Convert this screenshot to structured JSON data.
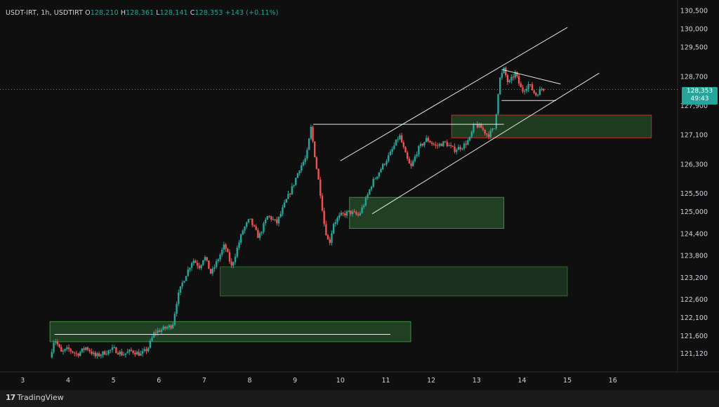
{
  "legend": {
    "symbol": "USDT-IRT, 1h, USDTIRT",
    "o_label": "O",
    "o_value": "128,210",
    "h_label": "H",
    "h_value": "128,361",
    "l_label": "L",
    "l_value": "128,141",
    "c_label": "C",
    "c_value": "128,353",
    "change": "+143 (+0.11%)"
  },
  "price_tag": {
    "price": "128,353",
    "countdown": "49:43"
  },
  "branding": {
    "logo_mark": "17",
    "name": "TradingView"
  },
  "colors": {
    "up": "#26a69a",
    "down": "#ef5350",
    "zone_fill": "#4caf50",
    "zone_border": "#4caf50",
    "red_zone_border": "#d32f2f",
    "line": "#ffffff",
    "background": "#0f0f0f"
  },
  "chart_data": {
    "type": "candlestick",
    "title": "USDT-IRT, 1h, USDTIRT",
    "xlabel": "",
    "ylabel": "",
    "x_ticks": [
      "3",
      "4",
      "5",
      "6",
      "7",
      "8",
      "9",
      "10",
      "11",
      "12",
      "13",
      "14",
      "15",
      "16"
    ],
    "y_ticks": [
      "130,500",
      "130,000",
      "129,500",
      "128,700",
      "127,900",
      "127,100",
      "126,300",
      "125,500",
      "125,000",
      "124,400",
      "123,800",
      "123,200",
      "122,600",
      "122,100",
      "121,600",
      "121,120"
    ],
    "x_range": [
      2.5,
      17.35
    ],
    "y_range": [
      120700,
      130800
    ],
    "current_price": 128353,
    "price_path": [
      [
        3.6,
        121020
      ],
      [
        3.7,
        121550
      ],
      [
        3.85,
        121150
      ],
      [
        4.0,
        121250
      ],
      [
        4.2,
        121100
      ],
      [
        4.4,
        121300
      ],
      [
        4.6,
        121050
      ],
      [
        4.8,
        121150
      ],
      [
        5.0,
        121250
      ],
      [
        5.2,
        121100
      ],
      [
        5.4,
        121200
      ],
      [
        5.6,
        121100
      ],
      [
        5.75,
        121250
      ],
      [
        5.9,
        121700
      ],
      [
        6.1,
        121800
      ],
      [
        6.3,
        121900
      ],
      [
        6.4,
        122600
      ],
      [
        6.5,
        123000
      ],
      [
        6.6,
        123300
      ],
      [
        6.75,
        123700
      ],
      [
        6.9,
        123500
      ],
      [
        7.0,
        123800
      ],
      [
        7.15,
        123300
      ],
      [
        7.3,
        123700
      ],
      [
        7.45,
        124100
      ],
      [
        7.6,
        123500
      ],
      [
        7.7,
        123900
      ],
      [
        7.85,
        124500
      ],
      [
        8.0,
        124800
      ],
      [
        8.2,
        124300
      ],
      [
        8.4,
        124900
      ],
      [
        8.6,
        124700
      ],
      [
        8.8,
        125300
      ],
      [
        8.95,
        125700
      ],
      [
        9.1,
        126200
      ],
      [
        9.25,
        126500
      ],
      [
        9.35,
        127300
      ],
      [
        9.45,
        126400
      ],
      [
        9.55,
        125600
      ],
      [
        9.65,
        124600
      ],
      [
        9.75,
        124100
      ],
      [
        9.85,
        124700
      ],
      [
        10.0,
        124900
      ],
      [
        10.2,
        125000
      ],
      [
        10.4,
        124900
      ],
      [
        10.55,
        125300
      ],
      [
        10.7,
        125800
      ],
      [
        10.9,
        126200
      ],
      [
        11.1,
        126600
      ],
      [
        11.3,
        127100
      ],
      [
        11.45,
        126500
      ],
      [
        11.55,
        126200
      ],
      [
        11.7,
        126700
      ],
      [
        11.9,
        127000
      ],
      [
        12.1,
        126800
      ],
      [
        12.3,
        126900
      ],
      [
        12.5,
        126700
      ],
      [
        12.7,
        126800
      ],
      [
        12.85,
        127000
      ],
      [
        12.95,
        127400
      ],
      [
        13.1,
        127300
      ],
      [
        13.25,
        127100
      ],
      [
        13.4,
        127300
      ],
      [
        13.5,
        128600
      ],
      [
        13.6,
        128900
      ],
      [
        13.7,
        128500
      ],
      [
        13.85,
        128800
      ],
      [
        14.0,
        128300
      ],
      [
        14.15,
        128500
      ],
      [
        14.3,
        128200
      ],
      [
        14.45,
        128400
      ],
      [
        14.5,
        128353
      ]
    ],
    "zones": [
      {
        "name": "zone-1",
        "x": [
          3.6,
          11.55
        ],
        "y": [
          121450,
          122000
        ],
        "style": "green"
      },
      {
        "name": "zone-2",
        "x": [
          7.35,
          15.0
        ],
        "y": [
          122700,
          123500
        ],
        "style": "green-faint"
      },
      {
        "name": "zone-3",
        "x": [
          10.2,
          13.6
        ],
        "y": [
          124550,
          125400
        ],
        "style": "green"
      },
      {
        "name": "zone-4",
        "x": [
          12.45,
          16.85
        ],
        "y": [
          127030,
          127650
        ],
        "style": "red-border"
      }
    ],
    "lines": [
      {
        "name": "upper-channel-line",
        "x1": 10.0,
        "y1": 126400,
        "x2": 15.0,
        "y2": 130050
      },
      {
        "name": "lower-channel-line",
        "x1": 10.7,
        "y1": 124950,
        "x2": 15.7,
        "y2": 128800
      },
      {
        "name": "triangle-upper-line",
        "x1": 13.55,
        "y1": 128900,
        "x2": 14.85,
        "y2": 128500
      },
      {
        "name": "triangle-lower-line",
        "x1": 13.55,
        "y1": 128050,
        "x2": 14.75,
        "y2": 128050
      },
      {
        "name": "resistance-line",
        "x1": 9.4,
        "y1": 127400,
        "x2": 13.6,
        "y2": 127400
      },
      {
        "name": "support-line",
        "x1": 3.7,
        "y1": 121650,
        "x2": 11.1,
        "y2": 121650
      }
    ],
    "grid": false,
    "legend": "top-left"
  }
}
